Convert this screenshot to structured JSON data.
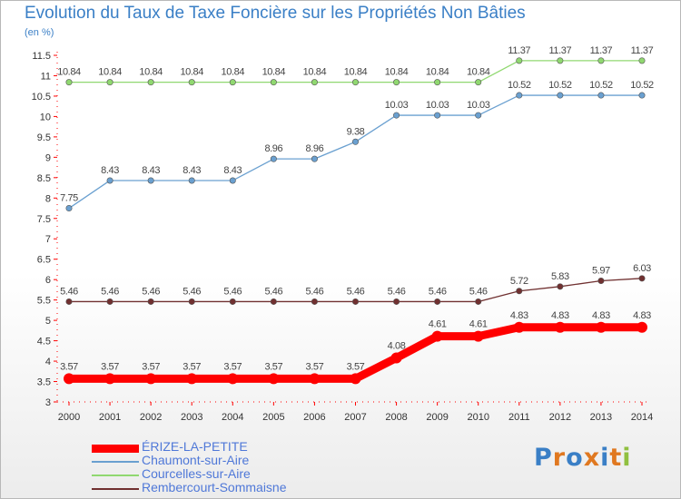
{
  "chart_data": {
    "type": "line",
    "title": "Evolution du Taux de Taxe Foncière sur les Propriétés Non Bâties",
    "subtitle": "(en %)",
    "x": [
      "2000",
      "2001",
      "2002",
      "2003",
      "2004",
      "2005",
      "2006",
      "2007",
      "2008",
      "2009",
      "2010",
      "2011",
      "2012",
      "2013",
      "2014"
    ],
    "ylim": [
      3,
      11.5
    ],
    "yticks": [
      "3",
      "3.5",
      "4",
      "4.5",
      "5",
      "5.5",
      "6",
      "6.5",
      "7",
      "7.5",
      "8",
      "8.5",
      "9",
      "9.5",
      "10",
      "10.5",
      "11",
      "11.5"
    ],
    "grid": false,
    "legend_position": "bottom-left",
    "series": [
      {
        "name": "ÉRIZE-LA-PETITE",
        "color": "#ff0000",
        "values": [
          3.57,
          3.57,
          3.57,
          3.57,
          3.57,
          3.57,
          3.57,
          3.57,
          4.08,
          4.61,
          4.61,
          4.83,
          4.83,
          4.83,
          4.83
        ],
        "labels": [
          "3.57",
          "3.57",
          "3.57",
          "3.57",
          "3.57",
          "3.57",
          "3.57",
          "3.57",
          "4.08",
          "4.61",
          "4.61",
          "4.83",
          "4.83",
          "4.83",
          "4.83"
        ]
      },
      {
        "name": "Chaumont-sur-Aire",
        "color": "#6aa0d0",
        "values": [
          7.75,
          8.43,
          8.43,
          8.43,
          8.43,
          8.96,
          8.96,
          9.38,
          10.03,
          10.03,
          10.03,
          10.52,
          10.52,
          10.52,
          10.52
        ],
        "labels": [
          "7.75",
          "8.43",
          "8.43",
          "8.43",
          "8.43",
          "8.96",
          "8.96",
          "9.38",
          "10.03",
          "10.03",
          "10.03",
          "10.52",
          "10.52",
          "10.52",
          "10.52"
        ]
      },
      {
        "name": "Courcelles-sur-Aire",
        "color": "#90d870",
        "values": [
          10.84,
          10.84,
          10.84,
          10.84,
          10.84,
          10.84,
          10.84,
          10.84,
          10.84,
          10.84,
          10.84,
          11.37,
          11.37,
          11.37,
          11.37
        ],
        "labels": [
          "10.84",
          "10.84",
          "10.84",
          "10.84",
          "10.84",
          "10.84",
          "10.84",
          "10.84",
          "10.84",
          "10.84",
          "10.84",
          "11.37",
          "11.37",
          "11.37",
          "11.37"
        ]
      },
      {
        "name": "Rembercourt-Sommaisne",
        "color": "#703030",
        "values": [
          5.46,
          5.46,
          5.46,
          5.46,
          5.46,
          5.46,
          5.46,
          5.46,
          5.46,
          5.46,
          5.46,
          5.72,
          5.83,
          5.97,
          6.03
        ],
        "labels": [
          "5.46",
          "5.46",
          "5.46",
          "5.46",
          "5.46",
          "5.46",
          "5.46",
          "5.46",
          "5.46",
          "5.46",
          "5.46",
          "5.72",
          "5.83",
          "5.97",
          "6.03"
        ]
      }
    ]
  },
  "logo": {
    "text": "Proxiti",
    "colors": [
      "#3a7fc6",
      "#e07820",
      "#3a7fc6",
      "#e07820",
      "#3a7fc6",
      "#e07820",
      "#90c040"
    ]
  }
}
